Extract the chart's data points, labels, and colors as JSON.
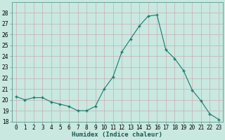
{
  "x": [
    0,
    1,
    2,
    3,
    4,
    5,
    6,
    7,
    8,
    9,
    10,
    11,
    12,
    13,
    14,
    15,
    16,
    17,
    18,
    19,
    20,
    21,
    22,
    23
  ],
  "y": [
    20.3,
    20.0,
    20.2,
    20.2,
    19.8,
    19.6,
    19.4,
    19.0,
    19.0,
    19.4,
    21.0,
    22.1,
    24.4,
    25.6,
    26.8,
    27.7,
    27.8,
    24.6,
    23.8,
    22.7,
    20.9,
    19.9,
    18.7,
    18.2
  ],
  "line_color": "#1a7a6e",
  "marker_color": "#1a7a6e",
  "bg_color": "#c8e8e0",
  "grid_major_color": "#b0d8d0",
  "grid_minor_color": "#d0ecea",
  "xlabel": "Humidex (Indice chaleur)",
  "ylim": [
    18,
    29
  ],
  "yticks": [
    18,
    19,
    20,
    21,
    22,
    23,
    24,
    25,
    26,
    27,
    28
  ],
  "xlim": [
    -0.5,
    23.5
  ],
  "xtick_labels": [
    "0",
    "1",
    "2",
    "3",
    "4",
    "5",
    "6",
    "7",
    "8",
    "9",
    "10",
    "11",
    "12",
    "13",
    "14",
    "15",
    "16",
    "17",
    "18",
    "19",
    "20",
    "21",
    "22",
    "23"
  ],
  "tick_fontsize": 5.5,
  "xlabel_fontsize": 6.5,
  "xlabel_bold": true
}
